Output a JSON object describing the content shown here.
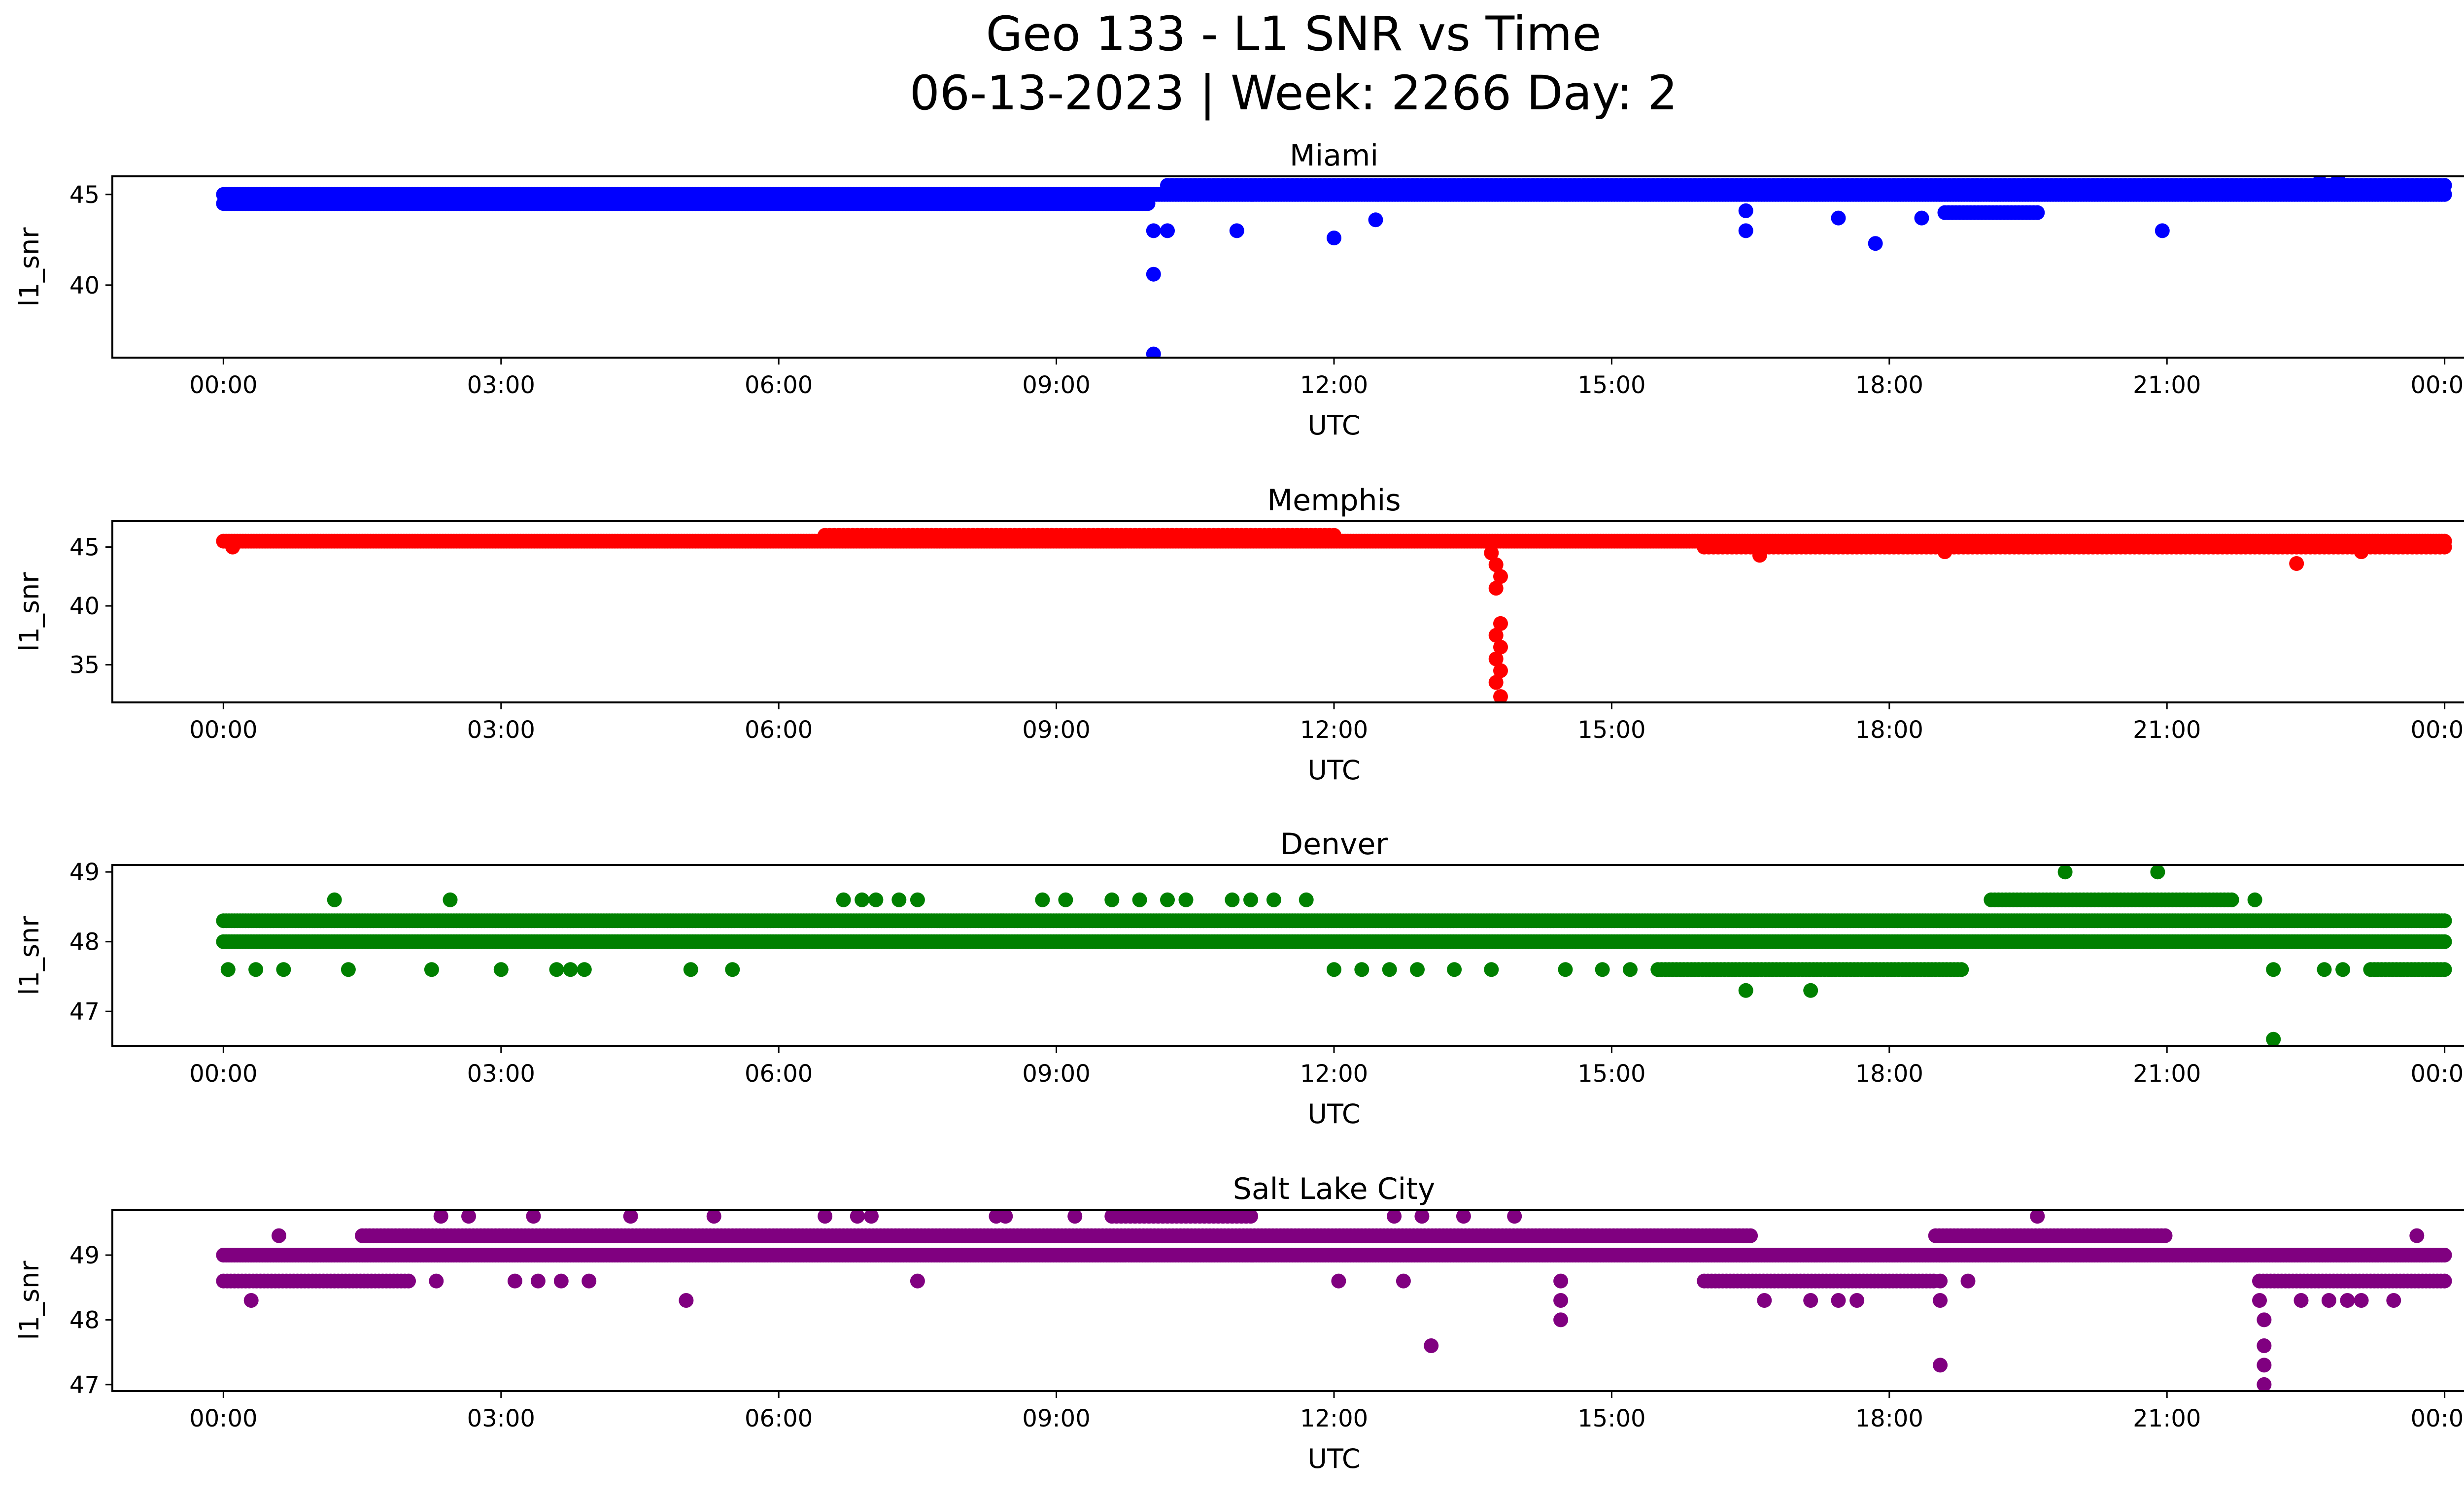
{
  "figure": {
    "title_line1": "Geo 133 - L1 SNR vs Time",
    "title_line2": "06-13-2023 | Week: 2266 Day: 2"
  },
  "chart_data": [
    {
      "type": "scatter",
      "title": "Miami",
      "xlabel": "UTC",
      "ylabel": "l1_snr",
      "color": "#0000ff",
      "x_ticks": [
        "00:00",
        "03:00",
        "06:00",
        "09:00",
        "12:00",
        "15:00",
        "18:00",
        "21:00",
        "00:00"
      ],
      "xlim_hours": [
        -1.2,
        25.2
      ],
      "y_ticks": [
        40,
        45
      ],
      "ylim": [
        36.0,
        46.0
      ],
      "bands": [
        {
          "y": 44.5,
          "from": 0.0,
          "to": 10.0,
          "step": 0.03
        },
        {
          "y": 45.0,
          "from": 0.0,
          "to": 24.0,
          "step": 0.03
        },
        {
          "y": 45.5,
          "from": 10.2,
          "to": 24.0,
          "step": 0.05
        },
        {
          "y": 44.0,
          "from": 18.6,
          "to": 19.6,
          "step": 0.04
        }
      ],
      "points": [
        [
          10.05,
          36.2
        ],
        [
          10.05,
          40.6
        ],
        [
          10.05,
          43.0
        ],
        [
          10.2,
          43.0
        ],
        [
          10.95,
          43.0
        ],
        [
          12.0,
          42.6
        ],
        [
          12.45,
          43.6
        ],
        [
          16.45,
          43.0
        ],
        [
          16.45,
          44.1
        ],
        [
          17.45,
          43.7
        ],
        [
          17.85,
          42.3
        ],
        [
          18.35,
          43.7
        ],
        [
          20.95,
          43.0
        ],
        [
          22.65,
          45.7
        ],
        [
          22.85,
          45.8
        ]
      ]
    },
    {
      "type": "scatter",
      "title": "Memphis",
      "xlabel": "UTC",
      "ylabel": "l1_snr",
      "color": "#ff0000",
      "x_ticks": [
        "00:00",
        "03:00",
        "06:00",
        "09:00",
        "12:00",
        "15:00",
        "18:00",
        "21:00",
        "00:00"
      ],
      "xlim_hours": [
        -1.2,
        25.2
      ],
      "y_ticks": [
        35,
        40,
        45
      ],
      "ylim": [
        31.8,
        47.2
      ],
      "bands": [
        {
          "y": 45.5,
          "from": 0.0,
          "to": 24.0,
          "step": 0.03
        },
        {
          "y": 46.0,
          "from": 6.5,
          "to": 12.0,
          "step": 0.05
        },
        {
          "y": 45.0,
          "from": 16.0,
          "to": 24.0,
          "step": 0.05
        }
      ],
      "points": [
        [
          0.1,
          45.0
        ],
        [
          13.7,
          44.5
        ],
        [
          13.75,
          43.5
        ],
        [
          13.8,
          42.5
        ],
        [
          13.75,
          41.5
        ],
        [
          13.8,
          38.5
        ],
        [
          13.75,
          37.5
        ],
        [
          13.8,
          36.5
        ],
        [
          13.75,
          35.5
        ],
        [
          13.8,
          34.5
        ],
        [
          13.75,
          33.5
        ],
        [
          13.8,
          32.3
        ],
        [
          16.6,
          44.3
        ],
        [
          18.6,
          44.6
        ],
        [
          22.4,
          43.6
        ],
        [
          23.1,
          44.6
        ]
      ]
    },
    {
      "type": "scatter",
      "title": "Denver",
      "xlabel": "UTC",
      "ylabel": "l1_snr",
      "color": "#008000",
      "x_ticks": [
        "00:00",
        "03:00",
        "06:00",
        "09:00",
        "12:00",
        "15:00",
        "18:00",
        "21:00",
        "00:00"
      ],
      "xlim_hours": [
        -1.2,
        25.2
      ],
      "y_ticks": [
        47,
        48,
        49
      ],
      "ylim": [
        46.5,
        49.1
      ],
      "bands": [
        {
          "y": 48.3,
          "from": 0.0,
          "to": 24.0,
          "step": 0.03
        },
        {
          "y": 48.0,
          "from": 0.0,
          "to": 24.0,
          "step": 0.03
        },
        {
          "y": 48.6,
          "from": 19.1,
          "to": 21.7,
          "step": 0.04
        },
        {
          "y": 47.6,
          "from": 15.5,
          "to": 18.8,
          "step": 0.04
        },
        {
          "y": 47.6,
          "from": 23.2,
          "to": 24.0,
          "step": 0.04
        }
      ],
      "points": [
        [
          0.05,
          47.6
        ],
        [
          0.35,
          47.6
        ],
        [
          0.65,
          47.6
        ],
        [
          1.2,
          48.6
        ],
        [
          1.35,
          47.6
        ],
        [
          2.25,
          47.6
        ],
        [
          2.45,
          48.6
        ],
        [
          3.0,
          47.6
        ],
        [
          3.6,
          47.6
        ],
        [
          3.75,
          47.6
        ],
        [
          3.9,
          47.6
        ],
        [
          5.05,
          47.6
        ],
        [
          5.5,
          47.6
        ],
        [
          6.7,
          48.6
        ],
        [
          6.9,
          48.6
        ],
        [
          7.05,
          48.6
        ],
        [
          7.3,
          48.6
        ],
        [
          7.5,
          48.6
        ],
        [
          8.85,
          48.6
        ],
        [
          9.1,
          48.6
        ],
        [
          9.6,
          48.6
        ],
        [
          9.9,
          48.6
        ],
        [
          10.2,
          48.6
        ],
        [
          10.4,
          48.6
        ],
        [
          10.9,
          48.6
        ],
        [
          11.1,
          48.6
        ],
        [
          11.35,
          48.6
        ],
        [
          11.7,
          48.6
        ],
        [
          12.0,
          47.6
        ],
        [
          12.3,
          47.6
        ],
        [
          12.6,
          47.6
        ],
        [
          12.9,
          47.6
        ],
        [
          13.3,
          47.6
        ],
        [
          13.7,
          47.6
        ],
        [
          14.5,
          47.6
        ],
        [
          14.9,
          47.6
        ],
        [
          15.2,
          47.6
        ],
        [
          16.45,
          47.3
        ],
        [
          17.15,
          47.3
        ],
        [
          19.9,
          49.0
        ],
        [
          20.1,
          48.0
        ],
        [
          20.9,
          49.0
        ],
        [
          21.95,
          48.6
        ],
        [
          22.15,
          47.6
        ],
        [
          22.15,
          46.6
        ],
        [
          22.7,
          47.6
        ],
        [
          22.9,
          47.6
        ]
      ]
    },
    {
      "type": "scatter",
      "title": "Salt Lake City",
      "xlabel": "UTC",
      "ylabel": "l1_snr",
      "color": "#800080",
      "x_ticks": [
        "00:00",
        "03:00",
        "06:00",
        "09:00",
        "12:00",
        "15:00",
        "18:00",
        "21:00",
        "00:00"
      ],
      "xlim_hours": [
        -1.2,
        25.2
      ],
      "y_ticks": [
        47,
        48,
        49
      ],
      "ylim": [
        46.9,
        49.7
      ],
      "bands": [
        {
          "y": 49.0,
          "from": 0.0,
          "to": 24.0,
          "step": 0.03
        },
        {
          "y": 48.6,
          "from": 0.0,
          "to": 2.0,
          "step": 0.04
        },
        {
          "y": 49.3,
          "from": 1.5,
          "to": 16.5,
          "step": 0.04
        },
        {
          "y": 49.3,
          "from": 18.5,
          "to": 21.0,
          "step": 0.04
        },
        {
          "y": 48.6,
          "from": 16.0,
          "to": 18.5,
          "step": 0.04
        },
        {
          "y": 48.6,
          "from": 22.0,
          "to": 24.0,
          "step": 0.04
        },
        {
          "y": 49.6,
          "from": 9.6,
          "to": 11.1,
          "step": 0.05
        }
      ],
      "points": [
        [
          0.3,
          48.3
        ],
        [
          0.6,
          49.3
        ],
        [
          2.3,
          48.6
        ],
        [
          2.35,
          49.6
        ],
        [
          2.65,
          49.6
        ],
        [
          3.15,
          48.6
        ],
        [
          3.4,
          48.6
        ],
        [
          3.35,
          49.6
        ],
        [
          3.65,
          48.6
        ],
        [
          3.95,
          48.6
        ],
        [
          4.4,
          49.6
        ],
        [
          5.0,
          48.3
        ],
        [
          5.3,
          49.6
        ],
        [
          6.5,
          49.6
        ],
        [
          6.85,
          49.6
        ],
        [
          7.0,
          49.6
        ],
        [
          7.5,
          48.6
        ],
        [
          8.35,
          49.6
        ],
        [
          8.45,
          49.6
        ],
        [
          9.2,
          49.6
        ],
        [
          12.05,
          48.6
        ],
        [
          12.65,
          49.6
        ],
        [
          12.75,
          48.6
        ],
        [
          12.95,
          49.6
        ],
        [
          13.05,
          47.6
        ],
        [
          13.4,
          49.6
        ],
        [
          13.95,
          49.6
        ],
        [
          14.45,
          48.6
        ],
        [
          14.45,
          48.3
        ],
        [
          14.45,
          48.0
        ],
        [
          16.65,
          48.3
        ],
        [
          17.15,
          48.3
        ],
        [
          17.45,
          48.3
        ],
        [
          17.65,
          48.3
        ],
        [
          18.55,
          48.6
        ],
        [
          18.55,
          48.3
        ],
        [
          18.55,
          47.3
        ],
        [
          18.85,
          48.6
        ],
        [
          19.6,
          49.6
        ],
        [
          22.0,
          48.3
        ],
        [
          22.05,
          48.0
        ],
        [
          22.05,
          47.6
        ],
        [
          22.05,
          47.3
        ],
        [
          22.05,
          47.0
        ],
        [
          22.45,
          48.3
        ],
        [
          22.75,
          48.3
        ],
        [
          22.95,
          48.3
        ],
        [
          23.1,
          48.3
        ],
        [
          23.45,
          48.3
        ],
        [
          23.7,
          49.3
        ]
      ]
    }
  ]
}
